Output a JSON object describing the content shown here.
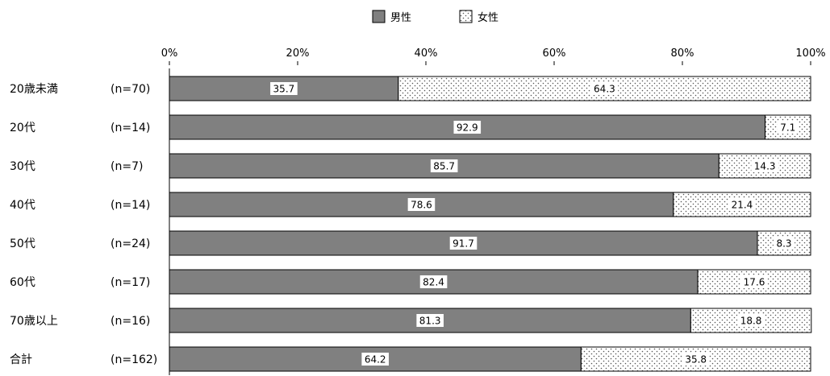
{
  "chart_data": {
    "type": "bar",
    "orientation": "horizontal",
    "stacked": "percent",
    "title": "",
    "xlabel": "",
    "ylabel": "",
    "xlim": [
      0,
      100
    ],
    "x_ticks": [
      "0%",
      "20%",
      "40%",
      "60%",
      "80%",
      "100%"
    ],
    "grid": false,
    "legend_position": "top-center",
    "categories": [
      "20歳未満",
      "20代",
      "30代",
      "40代",
      "50代",
      "60代",
      "70歳以上",
      "合計"
    ],
    "sample_sizes": [
      "(n=70)",
      "(n=14)",
      "(n=7)",
      "(n=14)",
      "(n=24)",
      "(n=17)",
      "(n=16)",
      "(n=162)"
    ],
    "series": [
      {
        "name": "男性",
        "color": "#808080",
        "pattern": "solid",
        "values": [
          35.7,
          92.9,
          85.7,
          78.6,
          91.7,
          82.4,
          81.3,
          64.2
        ]
      },
      {
        "name": "女性",
        "color": "#ffffff",
        "pattern": "dotted",
        "values": [
          64.3,
          7.1,
          14.3,
          21.4,
          8.3,
          17.6,
          18.8,
          35.8
        ]
      }
    ]
  }
}
